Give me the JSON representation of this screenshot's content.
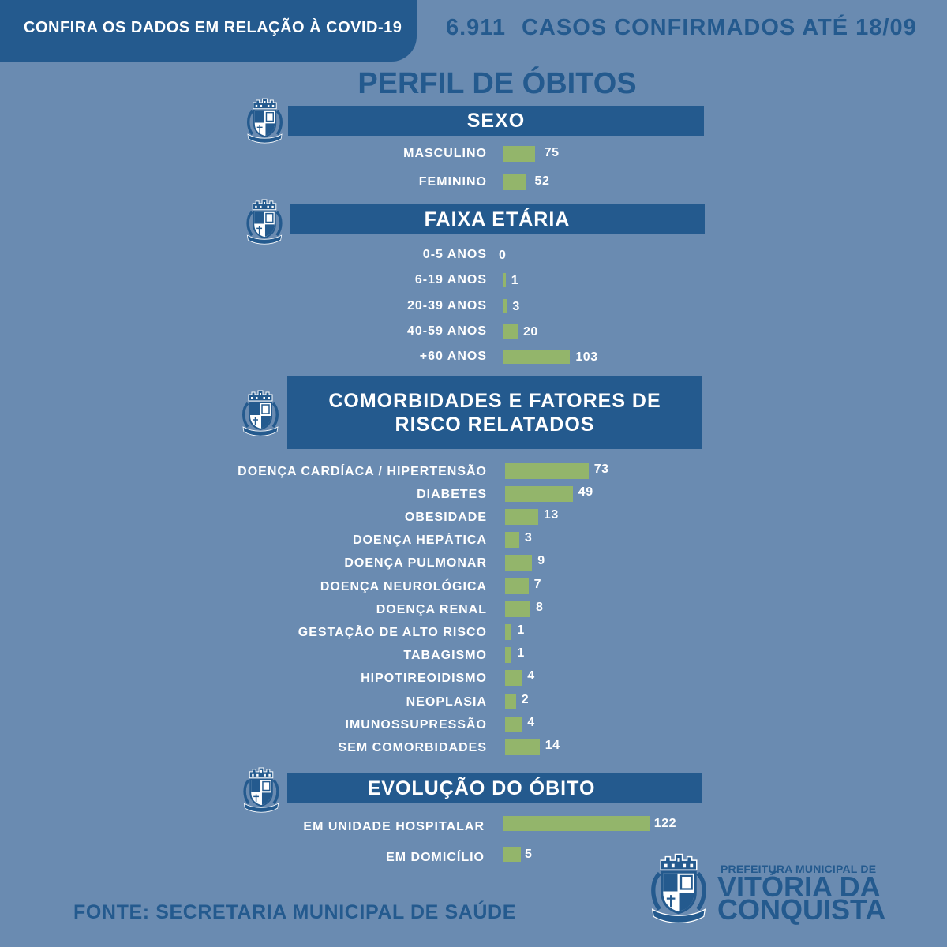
{
  "header": {
    "banner_text": "CONFIRA OS DADOS EM RELAÇÃO À COVID-19",
    "cases_count": "6.911",
    "cases_label": "CASOS CONFIRMADOS ATÉ 18/09"
  },
  "title": "PERFIL DE ÓBITOS",
  "colors": {
    "background": "#6a8bb1",
    "primary": "#245a8e",
    "bar": "#93b56b",
    "text": "#ffffff"
  },
  "icons": {
    "section_emblem": "coat-of-arms-icon",
    "footer_emblem": "coat-of-arms-icon"
  },
  "chart_data": [
    {
      "type": "bar",
      "orientation": "horizontal",
      "title": "SEXO",
      "categories": [
        "MASCULINO",
        "FEMININO"
      ],
      "values": [
        75,
        52
      ]
    },
    {
      "type": "bar",
      "orientation": "horizontal",
      "title": "FAIXA ETÁRIA",
      "categories": [
        "0-5 ANOS",
        "6-19 ANOS",
        "20-39 ANOS",
        "40-59 ANOS",
        "+60 ANOS"
      ],
      "values": [
        0,
        1,
        3,
        20,
        103
      ]
    },
    {
      "type": "bar",
      "orientation": "horizontal",
      "title": "COMORBIDADES E FATORES DE RISCO RELATADOS",
      "categories": [
        "DOENÇA CARDÍACA / HIPERTENSÃO",
        "DIABETES",
        "OBESIDADE",
        "DOENÇA HEPÁTICA",
        "DOENÇA PULMONAR",
        "DOENÇA NEUROLÓGICA",
        "DOENÇA RENAL",
        "GESTAÇÃO DE ALTO RISCO",
        "TABAGISMO",
        "HIPOTIREOIDISMO",
        "NEOPLASIA",
        "IMUNOSSUPRESSÃO",
        "SEM COMORBIDADES"
      ],
      "values": [
        73,
        49,
        13,
        3,
        9,
        7,
        8,
        1,
        1,
        4,
        2,
        4,
        14
      ]
    },
    {
      "type": "bar",
      "orientation": "horizontal",
      "title": "EVOLUÇÃO DO ÓBITO",
      "categories": [
        "EM UNIDADE HOSPITALAR",
        "EM DOMICÍLIO"
      ],
      "values": [
        122,
        5
      ]
    }
  ],
  "footer": {
    "source": "FONTE: SECRETARIA MUNICIPAL DE SAÚDE",
    "logo": {
      "line1": "PREFEITURA MUNICIPAL DE",
      "line2": "VITÓRIA DA",
      "line3": "CONQUISTA"
    }
  }
}
